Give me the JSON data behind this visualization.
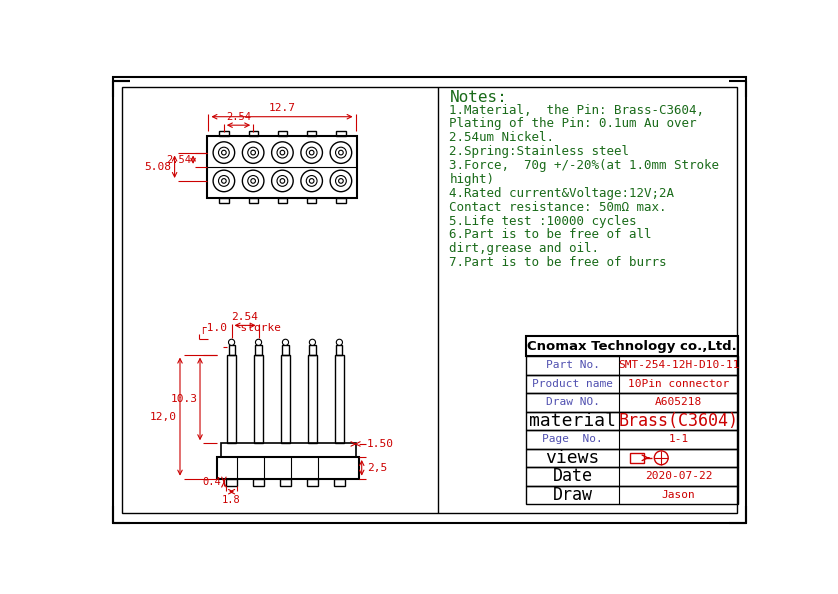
{
  "line_color": "#000000",
  "dim_color": "#cc0000",
  "notes_color": "#1a6b1a",
  "title": "Cnomax Technology co.,Ltd.",
  "notes": [
    "Notes:",
    "1.Material,  the Pin: Brass-C3604,",
    "Plating of the Pin: 0.1um Au over",
    "2.54um Nickel.",
    "2.Spring:Stainless steel",
    "3.Force,  70g +/-20%(at 1.0mm Stroke",
    "hight)",
    "4.Rated current&Voltage:12V;2A",
    "Contact resistance: 50mΩ max.",
    "5.Life test :10000 cycles",
    "6.Part is to be free of all",
    "dirt,grease and oil.",
    "7.Part is to be free of burrs"
  ],
  "table_data": [
    [
      "Part No.",
      "SMT-254-12H-D10-11"
    ],
    [
      "Product name",
      "10Pin connector"
    ],
    [
      "Draw NO.",
      "A605218"
    ],
    [
      "material",
      "Brass(C3604)"
    ],
    [
      "Page  No.",
      "1-1"
    ],
    [
      "views",
      ""
    ],
    [
      "Date",
      "2020-07-22"
    ],
    [
      "Draw",
      "Jason"
    ]
  ],
  "table_left_color": "#5050b0",
  "table_right_color": "#cc0000"
}
